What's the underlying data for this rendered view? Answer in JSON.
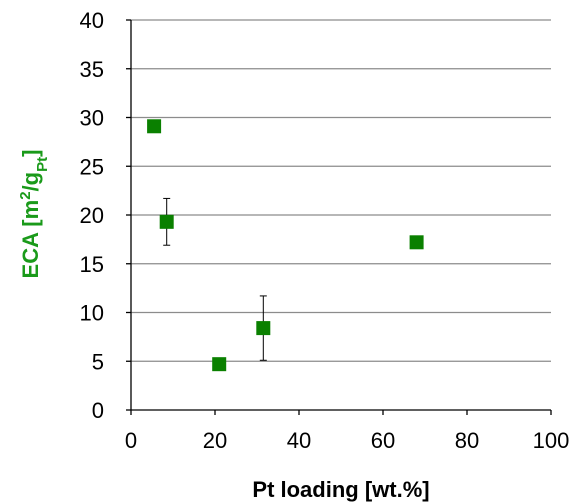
{
  "chart_data": {
    "type": "scatter",
    "title": "",
    "xlabel": "Pt loading [wt.%]",
    "ylabel": {
      "prefix": "ECA [m",
      "sup": "2",
      "mid": "/g",
      "sub": "Pt",
      "suffix": "]"
    },
    "xlim": [
      0,
      100
    ],
    "ylim": [
      0,
      40
    ],
    "xticks": [
      0,
      20,
      40,
      60,
      80,
      100
    ],
    "yticks": [
      0,
      5,
      10,
      15,
      20,
      25,
      30,
      35,
      40
    ],
    "grid": "horizontal",
    "legend": "none",
    "colors": {
      "marker": "#0a8000",
      "ylabel": "#1a9a1a",
      "grid": "#8c8c8c",
      "errorbar": "#000000"
    },
    "points": [
      {
        "x": 5.5,
        "y": 29.1,
        "err": 0.4
      },
      {
        "x": 8.5,
        "y": 19.3,
        "err": 2.4
      },
      {
        "x": 21,
        "y": 4.7,
        "err": 0.2
      },
      {
        "x": 31.5,
        "y": 8.4,
        "err": 3.3
      },
      {
        "x": 68,
        "y": 17.2,
        "err": 0.3
      }
    ]
  }
}
